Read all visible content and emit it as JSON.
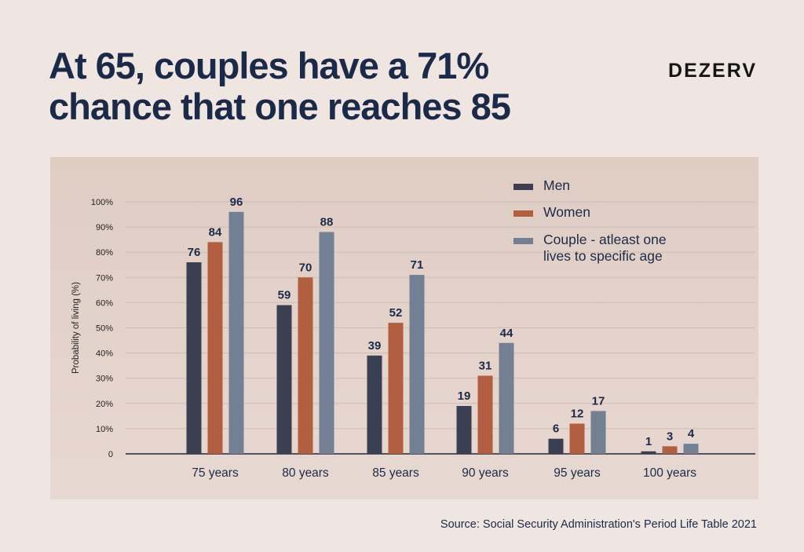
{
  "header": {
    "title_line1": "At 65, couples have a 71%",
    "title_line2": "chance that one reaches 85",
    "brand": "DEZERV"
  },
  "source": "Source: Social Security Administration's Period Life Table 2021",
  "chart_data": {
    "type": "bar",
    "title": "",
    "xlabel": "",
    "ylabel": "Probability of living (%)",
    "ylim": [
      0,
      100
    ],
    "yticks": [
      "0",
      "10%",
      "20%",
      "30%",
      "40%",
      "50%",
      "60%",
      "70%",
      "80%",
      "90%",
      "100%"
    ],
    "grid": true,
    "legend_position": "top-right",
    "categories": [
      "75 years",
      "80 years",
      "85 years",
      "90 years",
      "95 years",
      "100 years"
    ],
    "series": [
      {
        "name": "Men",
        "color": "#3a3f52",
        "values": [
          76,
          59,
          39,
          19,
          6,
          1
        ]
      },
      {
        "name": "Women",
        "color": "#b15f40",
        "values": [
          84,
          70,
          52,
          31,
          12,
          3
        ]
      },
      {
        "name": "Couple - atleast one lives to specific age",
        "color": "#737f92",
        "values": [
          96,
          88,
          71,
          44,
          17,
          4
        ]
      }
    ],
    "legend_lines": [
      [
        "Men"
      ],
      [
        "Women"
      ],
      [
        "Couple - atleast one",
        "lives to specific age"
      ]
    ]
  }
}
